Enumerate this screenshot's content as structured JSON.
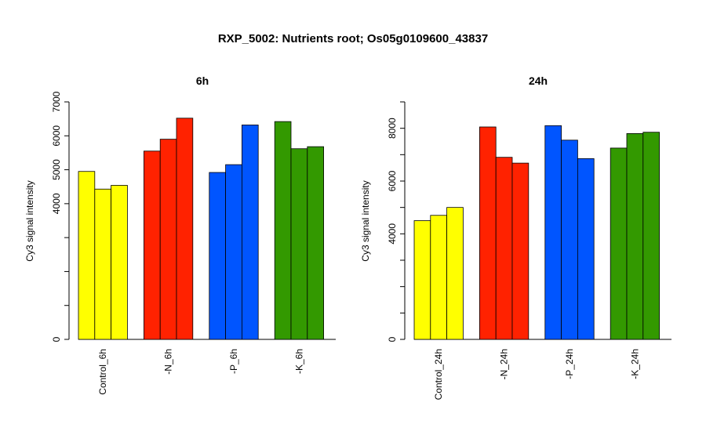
{
  "figure": {
    "title": "RXP_5002: Nutrients root; Os05g0109600_43837"
  },
  "colors": {
    "control": "#ffff00",
    "N": "#ff2200",
    "P": "#0055ff",
    "K": "#339900"
  },
  "chart_data": [
    {
      "type": "bar",
      "title": "6h",
      "ylabel": "Cy3 signal intensity",
      "xlabel": "",
      "ylim": [
        0,
        7000
      ],
      "yticks": [
        0,
        4000,
        5000,
        6000,
        7000
      ],
      "ytick_labels": [
        "0",
        "4000",
        "5000",
        "6000",
        "7000"
      ],
      "categories": [
        "Control_6h",
        "-N_6h",
        "-P_6h",
        "-K_6h"
      ],
      "groups": [
        {
          "label": "Control_6h",
          "color_key": "control",
          "values": [
            4950,
            4430,
            4540
          ]
        },
        {
          "label": "-N_6h",
          "color_key": "N",
          "values": [
            5550,
            5900,
            6520
          ]
        },
        {
          "label": "-P_6h",
          "color_key": "P",
          "values": [
            4920,
            5150,
            6320
          ]
        },
        {
          "label": "-K_6h",
          "color_key": "K",
          "values": [
            6420,
            5620,
            5680
          ]
        }
      ]
    },
    {
      "type": "bar",
      "title": "24h",
      "ylabel": "Cy3 signal intensity",
      "xlabel": "",
      "ylim": [
        0,
        9000
      ],
      "yticks": [
        0,
        4000,
        6000,
        8000
      ],
      "ytick_labels": [
        "0",
        "4000",
        "6000",
        "8000"
      ],
      "categories": [
        "Control_24h",
        "-N_24h",
        "-P_24h",
        "-K_24h"
      ],
      "groups": [
        {
          "label": "Control_24h",
          "color_key": "control",
          "values": [
            4500,
            4700,
            5000
          ]
        },
        {
          "label": "-N_24h",
          "color_key": "N",
          "values": [
            8050,
            6900,
            6680
          ]
        },
        {
          "label": "-P_24h",
          "color_key": "P",
          "values": [
            8100,
            7550,
            6850
          ]
        },
        {
          "label": "-K_24h",
          "color_key": "K",
          "values": [
            7250,
            7800,
            7850
          ]
        }
      ]
    }
  ]
}
